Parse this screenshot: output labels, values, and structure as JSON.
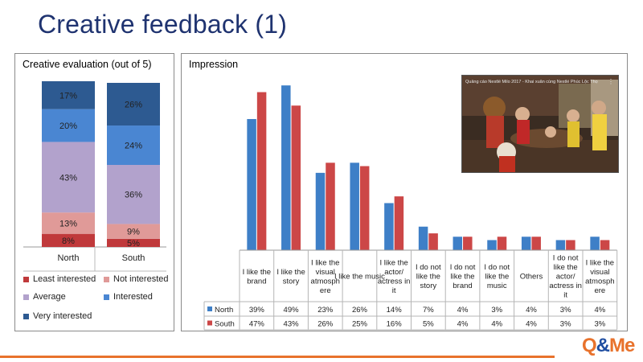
{
  "slide": {
    "title": "Creative feedback (1)"
  },
  "colors": {
    "least_interested": "#c0393b",
    "not_interested": "#e09a98",
    "average": "#b2a2cc",
    "interested": "#4a86d2",
    "very_interested": "#2d5a91",
    "north": "#3e7fc7",
    "south": "#cc4747",
    "accent_orange": "#e8722c",
    "title_blue": "#1f3370"
  },
  "left_chart": {
    "title": "Creative evaluation (out of 5)"
  },
  "right_chart": {
    "title": "Impression"
  },
  "video_thumbnail": {
    "caption": "Quảng cáo Nestlé Milo 2017 - Khai xuân cùng Nestlé Phúc Lộc Thọ"
  },
  "logo": {
    "part1": "Q",
    "part2": "&",
    "part3": "Me"
  },
  "chart_data": [
    {
      "type": "bar",
      "stacked": true,
      "percent": true,
      "title": "Creative evaluation (out of 5)",
      "categories": [
        "North",
        "South"
      ],
      "series": [
        {
          "name": "Least interested",
          "values": [
            8,
            5
          ],
          "labels": [
            "8%",
            "5%"
          ]
        },
        {
          "name": "Not interested",
          "values": [
            13,
            9
          ],
          "labels": [
            "13%",
            "9%"
          ]
        },
        {
          "name": "Average",
          "values": [
            43,
            36
          ],
          "labels": [
            "43%",
            "36%"
          ]
        },
        {
          "name": "Interested",
          "values": [
            20,
            24
          ],
          "labels": [
            "20%",
            "24%"
          ]
        },
        {
          "name": "Very interested",
          "values": [
            17,
            26
          ],
          "labels": [
            "17%",
            "26%"
          ]
        }
      ],
      "legend": "bottom",
      "grid": false
    },
    {
      "type": "bar",
      "title": "Impression",
      "categories": [
        "I like the brand",
        "I like the story",
        "I like the visual atmosphere",
        "I like the music",
        "I like the actor/ actress in it",
        "I do not like the story",
        "I do not like the brand",
        "I do not like the music",
        "Others",
        "I do not like the actor/ actress in it",
        "I like the visual atmosphere"
      ],
      "category_label_lines": [
        [
          "I like the",
          "brand"
        ],
        [
          "I like the",
          "story"
        ],
        [
          "I like the",
          "visual",
          "atmosph",
          "ere"
        ],
        [
          "I like the music"
        ],
        [
          "I like the",
          "actor/",
          "actress in",
          "it"
        ],
        [
          "I do not",
          "like the",
          "story"
        ],
        [
          "I do not",
          "like the",
          "brand"
        ],
        [
          "I do not",
          "like the",
          "music"
        ],
        [
          "Others"
        ],
        [
          "I do not",
          "like the",
          "actor/",
          "actress in",
          "it"
        ],
        [
          "I like the",
          "visual",
          "atmosph",
          "ere"
        ]
      ],
      "series": [
        {
          "name": "North",
          "values": [
            39,
            49,
            23,
            26,
            14,
            7,
            4,
            3,
            4,
            3,
            4
          ],
          "labels": [
            "39%",
            "49%",
            "23%",
            "26%",
            "14%",
            "7%",
            "4%",
            "3%",
            "4%",
            "3%",
            "4%"
          ]
        },
        {
          "name": "South",
          "values": [
            47,
            43,
            26,
            25,
            16,
            5,
            4,
            4,
            4,
            3,
            3
          ],
          "labels": [
            "47%",
            "43%",
            "26%",
            "25%",
            "16%",
            "5%",
            "4%",
            "4%",
            "4%",
            "3%",
            "3%"
          ]
        }
      ],
      "data_table": true,
      "grid": false
    }
  ]
}
